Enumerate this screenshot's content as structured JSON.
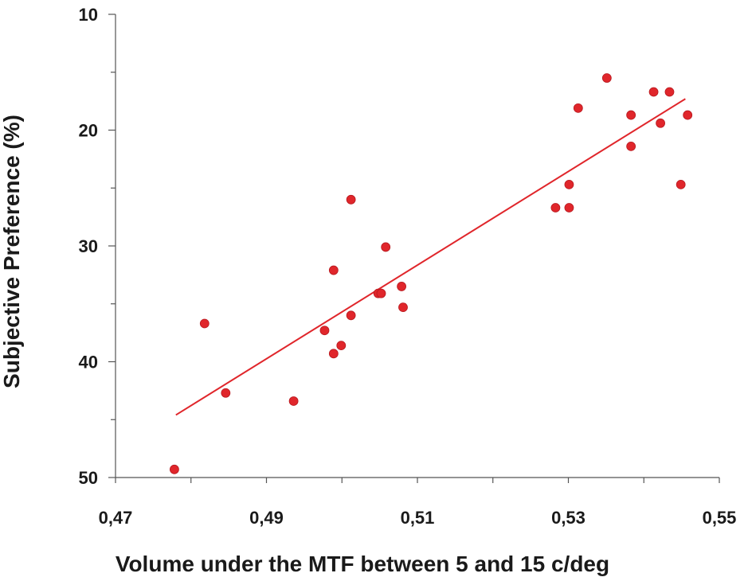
{
  "chart_data": {
    "type": "scatter",
    "title": "",
    "xlabel": "Volume under the MTF between 5 and 15 c/deg",
    "ylabel": "Subjective Preference (%)",
    "xlim": [
      0.47,
      0.55
    ],
    "ylim": [
      10,
      50
    ],
    "y_inverted": true,
    "x_ticks": [
      0.47,
      0.49,
      0.51,
      0.53,
      0.55
    ],
    "x_tick_labels": [
      "0,47",
      "0,49",
      "0,51",
      "0,53",
      "0,55"
    ],
    "y_ticks": [
      10,
      20,
      30,
      40,
      50
    ],
    "y_tick_labels": [
      "10",
      "20",
      "30",
      "40",
      "50"
    ],
    "grid": false,
    "point_color": "#e0262b",
    "line_color": "#e0262b",
    "points": [
      {
        "x": 0.4778,
        "y": 49.3
      },
      {
        "x": 0.4818,
        "y": 36.7
      },
      {
        "x": 0.4846,
        "y": 42.7
      },
      {
        "x": 0.4936,
        "y": 43.4
      },
      {
        "x": 0.4977,
        "y": 37.3
      },
      {
        "x": 0.4989,
        "y": 32.1
      },
      {
        "x": 0.4989,
        "y": 39.3
      },
      {
        "x": 0.4999,
        "y": 38.6
      },
      {
        "x": 0.5012,
        "y": 26.0
      },
      {
        "x": 0.5012,
        "y": 36.0
      },
      {
        "x": 0.5048,
        "y": 34.1
      },
      {
        "x": 0.5052,
        "y": 34.1
      },
      {
        "x": 0.5058,
        "y": 30.1
      },
      {
        "x": 0.5079,
        "y": 33.5
      },
      {
        "x": 0.5081,
        "y": 35.3
      },
      {
        "x": 0.5283,
        "y": 26.7
      },
      {
        "x": 0.5301,
        "y": 26.7
      },
      {
        "x": 0.5301,
        "y": 24.7
      },
      {
        "x": 0.5313,
        "y": 18.1
      },
      {
        "x": 0.5351,
        "y": 15.5
      },
      {
        "x": 0.5383,
        "y": 18.7
      },
      {
        "x": 0.5383,
        "y": 21.4
      },
      {
        "x": 0.5413,
        "y": 16.7
      },
      {
        "x": 0.5422,
        "y": 19.4
      },
      {
        "x": 0.5434,
        "y": 16.7
      },
      {
        "x": 0.5449,
        "y": 24.7
      },
      {
        "x": 0.5458,
        "y": 18.7
      }
    ],
    "trendline": {
      "x": [
        0.478,
        0.5455
      ],
      "y": [
        44.6,
        17.3
      ]
    }
  }
}
